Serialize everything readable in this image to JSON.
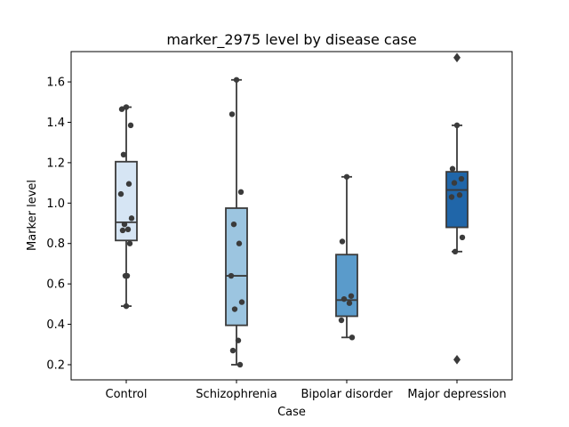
{
  "chart_data": {
    "type": "box",
    "title": "marker_2975 level by disease case",
    "xlabel": "Case",
    "ylabel": "Marker level",
    "ylim": [
      0.125,
      1.75
    ],
    "yticks": [
      0.2,
      0.4,
      0.6,
      0.8,
      1.0,
      1.2,
      1.4,
      1.6
    ],
    "ytick_labels": [
      "0.2",
      "0.4",
      "0.6",
      "0.8",
      "1.0",
      "1.2",
      "1.4",
      "1.6"
    ],
    "categories": [
      "Control",
      "Schizophrenia",
      "Bipolar disorder",
      "Major depression"
    ],
    "grid": false,
    "colors": [
      "#d6e5f4",
      "#9cc5e0",
      "#5a9bcb",
      "#2066a9"
    ],
    "boxes": [
      {
        "q1": 0.815,
        "median": 0.905,
        "q3": 1.205,
        "whisker_low": 0.49,
        "whisker_high": 1.475,
        "outliers": []
      },
      {
        "q1": 0.395,
        "median": 0.64,
        "q3": 0.975,
        "whisker_low": 0.2,
        "whisker_high": 1.61,
        "outliers": []
      },
      {
        "q1": 0.44,
        "median": 0.52,
        "q3": 0.745,
        "whisker_low": 0.335,
        "whisker_high": 1.13,
        "outliers": []
      },
      {
        "q1": 0.88,
        "median": 1.065,
        "q3": 1.155,
        "whisker_low": 0.76,
        "whisker_high": 1.385,
        "outliers": [
          1.72,
          0.225
        ]
      }
    ],
    "points": [
      [
        1.475,
        1.465,
        1.385,
        1.24,
        1.095,
        1.045,
        0.925,
        0.895,
        0.87,
        0.865,
        0.8,
        0.64,
        0.64,
        0.49
      ],
      [
        1.61,
        1.44,
        1.055,
        0.895,
        0.8,
        0.64,
        0.51,
        0.475,
        0.32,
        0.27,
        0.2
      ],
      [
        1.13,
        0.81,
        0.54,
        0.525,
        0.505,
        0.42,
        0.335
      ],
      [
        1.385,
        1.17,
        1.12,
        1.1,
        1.04,
        1.03,
        0.83,
        0.76
      ]
    ]
  }
}
